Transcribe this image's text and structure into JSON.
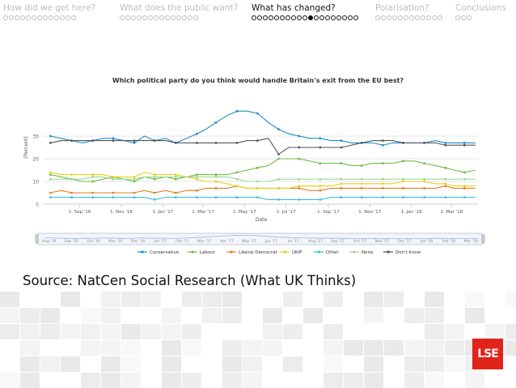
{
  "nav": {
    "sections": [
      {
        "label": "How did we get here?",
        "dots": 13,
        "active": false,
        "filled": -1
      },
      {
        "label": "What does the public want?",
        "dots": 14,
        "active": false,
        "filled": -1
      },
      {
        "label": "What has changed?",
        "dots": 19,
        "active": true,
        "filled": 10
      },
      {
        "label": "Polarisation?",
        "dots": 12,
        "active": false,
        "filled": -1
      },
      {
        "label": "Conclusions",
        "dots": 3,
        "active": false,
        "filled": -1
      }
    ]
  },
  "chart_data": {
    "type": "line",
    "title": "Which political party do you think would handle Britain's exit from the EU best?",
    "xlabel": "Date",
    "ylabel": "[Percent]",
    "ylim": [
      0,
      50
    ],
    "yticks": [
      0,
      10,
      20,
      30
    ],
    "xlim": [
      "2016-07-10",
      "2018-04-10"
    ],
    "xtick_labels": [
      "1. Sep '16",
      "1. Nov '16",
      "1. Jan '17",
      "1. Mar '17",
      "1. May '17",
      "1. Jul '17",
      "1. Sep '17",
      "1. Nov '17",
      "1. Jan '18",
      "1. Mar '18"
    ],
    "xtick_dates": [
      "2016-09-01",
      "2016-11-01",
      "2017-01-01",
      "2017-03-01",
      "2017-05-01",
      "2017-07-01",
      "2017-09-01",
      "2017-11-01",
      "2018-01-01",
      "2018-03-01"
    ],
    "navigator_labels": [
      "Aug '16",
      "Sep '16",
      "Oct '16",
      "Nov '16",
      "Dec '16",
      "Jan '17",
      "Feb '17",
      "Mar '17",
      "Apr '17",
      "May '17",
      "Jun '17",
      "Jul '17",
      "Aug '17",
      "Sep '17",
      "Oct '17",
      "Nov '17",
      "Dec '17",
      "Jan '18",
      "Feb '18",
      "Mar '18"
    ],
    "legend_position": "bottom",
    "credit": "Source: NatCen Social Research (What UK Thinks)",
    "x": [
      "2016-07-20",
      "2016-08-05",
      "2016-08-20",
      "2016-09-05",
      "2016-09-20",
      "2016-10-05",
      "2016-10-20",
      "2016-11-05",
      "2016-11-20",
      "2016-12-05",
      "2016-12-20",
      "2017-01-05",
      "2017-01-20",
      "2017-02-05",
      "2017-02-20",
      "2017-03-05",
      "2017-03-20",
      "2017-04-05",
      "2017-04-20",
      "2017-05-05",
      "2017-05-20",
      "2017-06-05",
      "2017-06-20",
      "2017-07-05",
      "2017-07-20",
      "2017-08-05",
      "2017-08-20",
      "2017-09-05",
      "2017-09-20",
      "2017-10-05",
      "2017-10-20",
      "2017-11-05",
      "2017-11-20",
      "2017-12-05",
      "2017-12-20",
      "2018-01-05",
      "2018-01-20",
      "2018-02-05",
      "2018-02-20",
      "2018-03-05",
      "2018-03-20",
      "2018-04-05"
    ],
    "series": [
      {
        "name": "Conservative",
        "color": "#1f8bc9",
        "values": [
          30,
          29,
          28,
          27,
          28,
          29,
          29,
          28,
          27,
          30,
          28,
          29,
          27,
          29,
          31,
          33,
          36,
          39,
          41,
          41,
          40,
          36,
          33,
          31,
          30,
          29,
          29,
          28,
          28,
          27,
          27,
          27,
          26,
          27,
          27,
          27,
          27,
          28,
          27,
          27,
          27,
          27
        ]
      },
      {
        "name": "Labour",
        "color": "#6abe45",
        "values": [
          13,
          12,
          11,
          10,
          10,
          11,
          12,
          11,
          10,
          12,
          11,
          12,
          11,
          12,
          13,
          13,
          13,
          13,
          14,
          15,
          16,
          17,
          20,
          20,
          20,
          19,
          18,
          18,
          18,
          17,
          17,
          18,
          18,
          18,
          19,
          19,
          18,
          17,
          16,
          15,
          14,
          15
        ]
      },
      {
        "name": "Liberal Democrat",
        "color": "#e67e22",
        "values": [
          5,
          6,
          5,
          5,
          5,
          5,
          5,
          5,
          5,
          6,
          5,
          6,
          5,
          6,
          6,
          7,
          7,
          7,
          8,
          7,
          7,
          7,
          7,
          7,
          7,
          6,
          6,
          7,
          7,
          7,
          7,
          7,
          7,
          7,
          7,
          7,
          7,
          7,
          8,
          7,
          7,
          7
        ]
      },
      {
        "name": "UKIP",
        "color": "#e6d21a",
        "values": [
          14,
          13,
          13,
          13,
          13,
          13,
          12,
          12,
          12,
          14,
          13,
          13,
          13,
          12,
          11,
          10,
          10,
          9,
          8,
          7,
          7,
          7,
          7,
          7,
          8,
          8,
          8,
          8,
          9,
          9,
          9,
          9,
          9,
          9,
          10,
          10,
          10,
          9,
          9,
          8,
          8,
          8
        ]
      },
      {
        "name": "Other",
        "color": "#3bbde3",
        "values": [
          3,
          3,
          3,
          3,
          3,
          3,
          3,
          3,
          3,
          3,
          2,
          3,
          3,
          3,
          3,
          3,
          3,
          3,
          3,
          3,
          3,
          2,
          2,
          2,
          2,
          2,
          2,
          3,
          3,
          3,
          3,
          3,
          3,
          3,
          3,
          3,
          3,
          3,
          3,
          3,
          3,
          3
        ]
      },
      {
        "name": "None",
        "color": "#9fd79a",
        "values": [
          11,
          11,
          11,
          11,
          12,
          12,
          11,
          11,
          11,
          12,
          12,
          12,
          12,
          12,
          12,
          12,
          12,
          12,
          11,
          10,
          10,
          10,
          11,
          11,
          11,
          11,
          11,
          11,
          11,
          11,
          11,
          11,
          11,
          11,
          11,
          11,
          11,
          11,
          11,
          11,
          11,
          11
        ]
      },
      {
        "name": "Don't know",
        "color": "#555555",
        "values": [
          27,
          28,
          28,
          28,
          28,
          28,
          28,
          28,
          28,
          28,
          28,
          28,
          27,
          27,
          27,
          27,
          27,
          27,
          27,
          28,
          28,
          29,
          22,
          25,
          25,
          25,
          25,
          25,
          25,
          26,
          27,
          28,
          28,
          28,
          27,
          27,
          27,
          27,
          26,
          26,
          26,
          26
        ]
      }
    ]
  }
}
